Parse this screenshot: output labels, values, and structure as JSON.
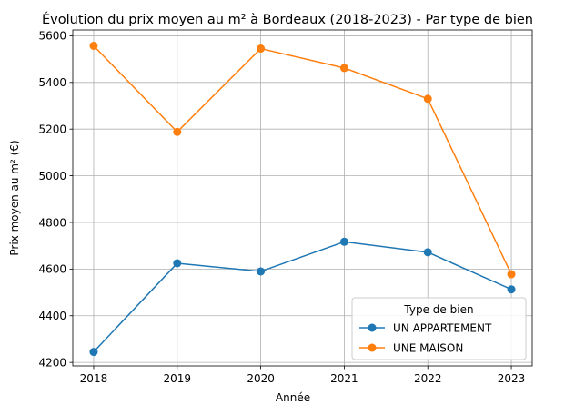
{
  "chart_data": {
    "type": "line",
    "title": "Évolution du prix moyen au m² à Bordeaux (2018-2023) - Par type de bien",
    "xlabel": "Année",
    "ylabel": "Prix moyen au m² (€)",
    "x": [
      2018,
      2019,
      2020,
      2021,
      2022,
      2023
    ],
    "xlim": [
      2017.75,
      2023.25
    ],
    "ylim": [
      4185,
      5625
    ],
    "yticks": [
      4200,
      4400,
      4600,
      4800,
      5000,
      5200,
      5400,
      5600
    ],
    "grid": true,
    "legend": {
      "title": "Type de bien",
      "placement": "lower-right"
    },
    "series": [
      {
        "name": "UN APPARTEMENT",
        "color": "#1f77b4",
        "marker": "circle",
        "values": [
          4245,
          4625,
          4590,
          4717,
          4672,
          4513
        ]
      },
      {
        "name": "UNE MAISON",
        "color": "#ff7f0e",
        "marker": "circle",
        "values": [
          5557,
          5188,
          5545,
          5462,
          5330,
          4578
        ]
      }
    ]
  }
}
